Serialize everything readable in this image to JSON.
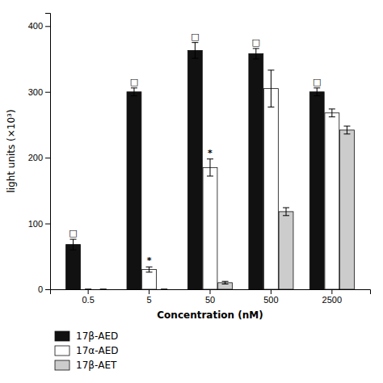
{
  "chart_data": {
    "type": "bar",
    "categories": [
      "0.5",
      "5",
      "50",
      "500",
      "2500"
    ],
    "series": [
      {
        "name": "17β-AED",
        "color": "#111111",
        "values": [
          68,
          300,
          363,
          358,
          300
        ],
        "errors": [
          8,
          6,
          12,
          8,
          6
        ],
        "annotations": [
          "□",
          "□",
          "□",
          "□",
          "□"
        ]
      },
      {
        "name": "17α-AED",
        "color": "#ffffff",
        "values": [
          0,
          30,
          185,
          305,
          268
        ],
        "errors": [
          0,
          4,
          13,
          28,
          6
        ],
        "annotations": [
          null,
          "*",
          "*",
          null,
          null
        ]
      },
      {
        "name": "17β-AET",
        "color": "#cccccc",
        "values": [
          0,
          0,
          10,
          118,
          242
        ],
        "errors": [
          0,
          0,
          2,
          6,
          6
        ]
      }
    ],
    "x_label": "Concentration (nM)",
    "y_label": "light units (×10³)",
    "ylim": [
      0,
      420
    ],
    "yticks": [
      0,
      100,
      200,
      300,
      400
    ],
    "grid": false,
    "legend": "bottom"
  }
}
